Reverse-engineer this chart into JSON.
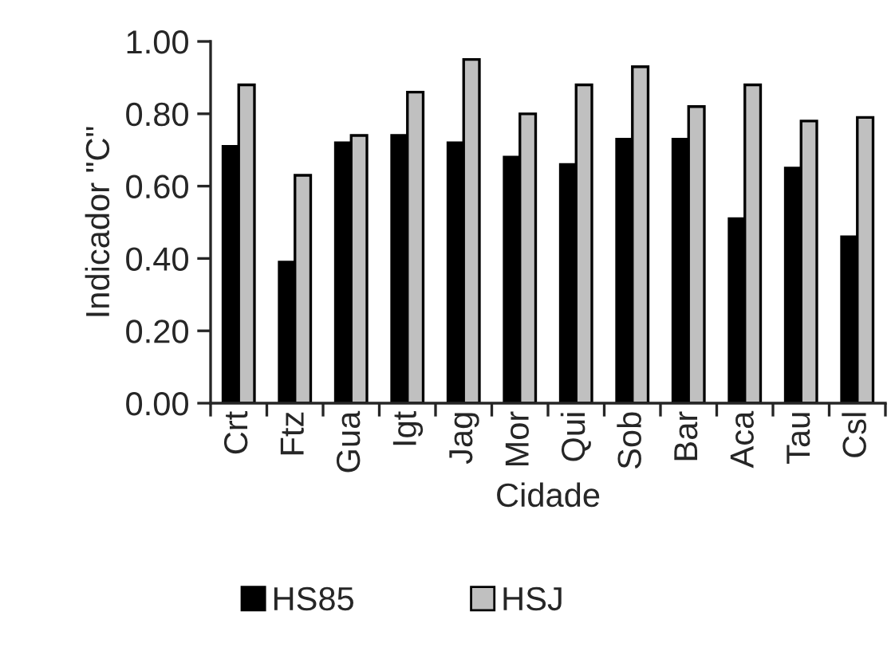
{
  "chart_data": {
    "type": "bar",
    "xlabel": "Cidade",
    "ylabel": "Indicador \"C\"",
    "categories": [
      "Crt",
      "Ftz",
      "Gua",
      "Igt",
      "Jag",
      "Mor",
      "Qui",
      "Sob",
      "Bar",
      "Aca",
      "Tau",
      "Csl"
    ],
    "series": [
      {
        "name": "HS85",
        "color": "#000000",
        "values": [
          0.71,
          0.39,
          0.72,
          0.74,
          0.72,
          0.68,
          0.66,
          0.73,
          0.73,
          0.51,
          0.65,
          0.46
        ]
      },
      {
        "name": "HSJ",
        "color": "#c0c0c0",
        "values": [
          0.88,
          0.63,
          0.74,
          0.86,
          0.95,
          0.8,
          0.88,
          0.93,
          0.82,
          0.88,
          0.78,
          0.79
        ]
      }
    ],
    "ylim": [
      0,
      1.0
    ],
    "yticks": [
      {
        "value": 0,
        "label": "0.00"
      },
      {
        "value": 0.2,
        "label": "0.20"
      },
      {
        "value": 0.4,
        "label": "0.40"
      },
      {
        "value": 0.6,
        "label": "0.60"
      },
      {
        "value": 0.8,
        "label": "0.80"
      },
      {
        "value": 1.0,
        "label": "1.00"
      }
    ],
    "grid": false,
    "legend": "bottom"
  }
}
